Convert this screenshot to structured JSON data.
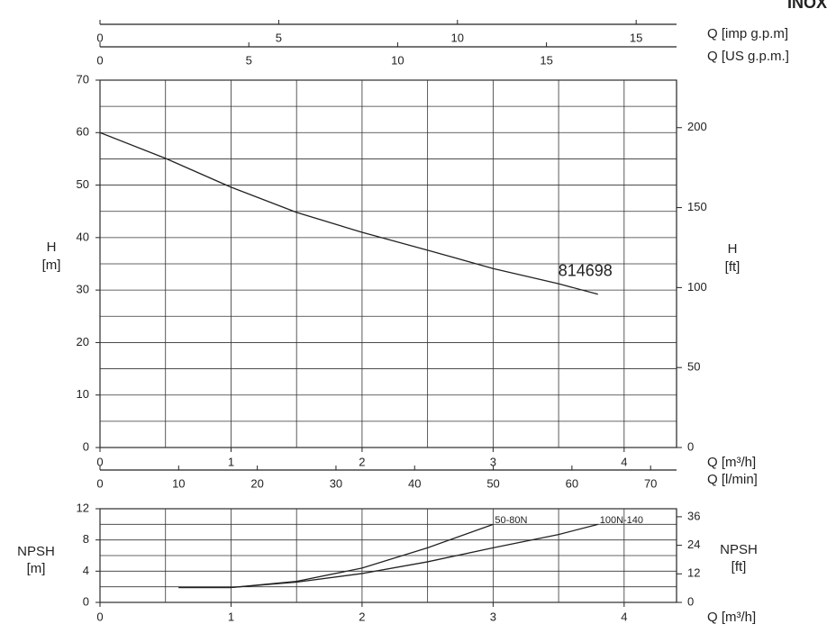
{
  "brand": "INOX",
  "chart_data": [
    {
      "type": "line",
      "x": [
        0,
        0.5,
        1,
        1.5,
        2,
        2.5,
        3,
        3.5,
        3.8
      ],
      "series": [
        {
          "name": "814698",
          "color": "#222222",
          "values": [
            60,
            55.1,
            49.6,
            44.8,
            41,
            37.6,
            34.1,
            31.2,
            29.2
          ]
        }
      ],
      "xlim": [
        0,
        4.4
      ],
      "xticks": [
        0,
        1,
        2,
        3,
        4
      ],
      "xlabel": "Q [m³/h]",
      "ylim": [
        0,
        70
      ],
      "yticks": [
        0,
        10,
        20,
        30,
        40,
        50,
        60,
        70
      ],
      "ylabel": [
        "H",
        "[m]"
      ],
      "y2lim": [
        0,
        229.7
      ],
      "y2ticks": [
        0,
        50,
        100,
        150,
        200
      ],
      "y2label": [
        "H",
        "[ft]"
      ],
      "extra_x_axes": [
        {
          "position": "top",
          "label": "Q [imp g.p.m]",
          "xlim": [
            0,
            16.13
          ],
          "xticks": [
            0,
            5,
            10,
            15
          ]
        },
        {
          "position": "top",
          "label": "Q [US g.p.m.]",
          "xlim": [
            0,
            19.37
          ],
          "xticks": [
            0,
            5,
            10,
            15
          ]
        },
        {
          "position": "bottom",
          "label": "Q [l/min]",
          "xlim": [
            0,
            73.3
          ],
          "xticks": [
            0,
            10,
            20,
            30,
            40,
            50,
            60,
            70
          ]
        }
      ],
      "grid": true
    },
    {
      "type": "line",
      "x": [
        0.6,
        1,
        1.5,
        2,
        2.5,
        3,
        3.5,
        3.8
      ],
      "series": [
        {
          "name": "50-80N",
          "color": "#222222",
          "values": [
            1.9,
            1.9,
            2.7,
            4.4,
            7,
            10,
            null,
            null
          ]
        },
        {
          "name": "100N-140",
          "color": "#222222",
          "values": [
            1.9,
            1.9,
            2.6,
            3.7,
            5.2,
            7,
            8.7,
            10
          ]
        }
      ],
      "xlim": [
        0,
        4.4
      ],
      "xticks": [
        0,
        1,
        2,
        3,
        4
      ],
      "xlabel": "Q [m³/h]",
      "ylim": [
        0,
        12
      ],
      "yticks": [
        0,
        4,
        8,
        12
      ],
      "ylabel": [
        "NPSH",
        "[m]"
      ],
      "y2lim": [
        0,
        39.37
      ],
      "y2ticks": [
        0,
        12,
        24,
        36
      ],
      "y2label": [
        "NPSH",
        "[ft]"
      ],
      "grid": true
    }
  ]
}
